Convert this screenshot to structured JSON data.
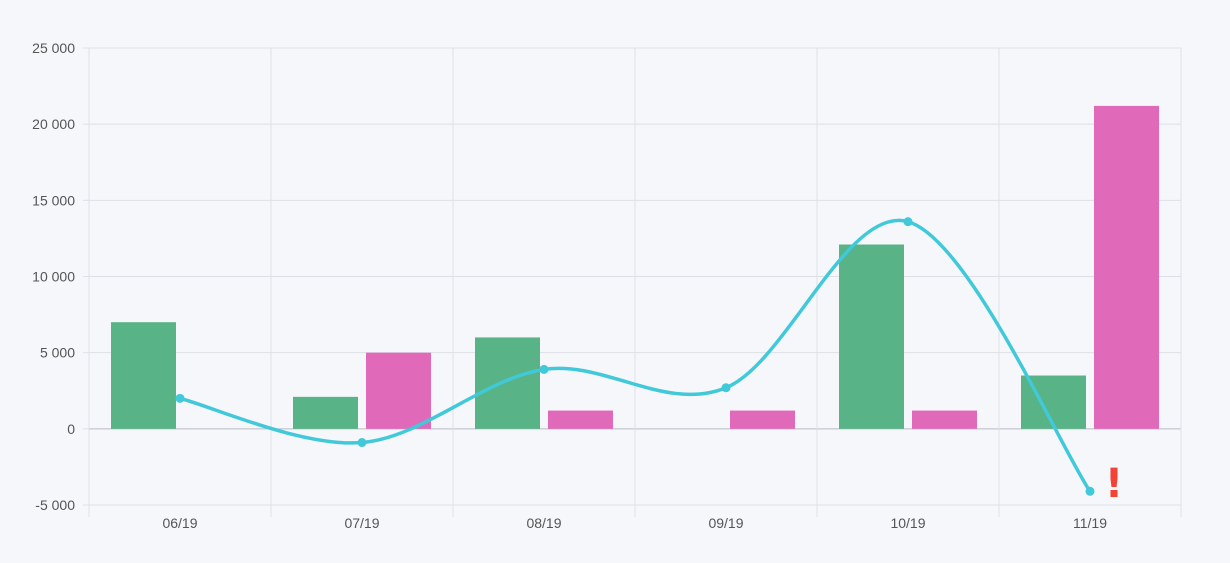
{
  "chart_data": {
    "type": "bar",
    "categories": [
      "06/19",
      "07/19",
      "08/19",
      "09/19",
      "10/19",
      "11/19"
    ],
    "ylim": [
      -5000,
      25000
    ],
    "y_ticks": [
      {
        "value": -5000,
        "label": "-5 000"
      },
      {
        "value": 0,
        "label": "0"
      },
      {
        "value": 5000,
        "label": "5 000"
      },
      {
        "value": 10000,
        "label": "10 000"
      },
      {
        "value": 15000,
        "label": "15 000"
      },
      {
        "value": 20000,
        "label": "20 000"
      },
      {
        "value": 25000,
        "label": "25 000"
      }
    ],
    "grid": true,
    "series": [
      {
        "type": "bar",
        "color": "#58b386",
        "values": [
          7000,
          2100,
          6000,
          0,
          12100,
          3500
        ]
      },
      {
        "type": "bar",
        "color": "#e06ab9",
        "values": [
          0,
          5000,
          1200,
          1200,
          1200,
          21200
        ]
      },
      {
        "type": "line",
        "color": "#41c9da",
        "values": [
          2000,
          -900,
          3900,
          2700,
          13600,
          -4100
        ]
      }
    ],
    "annotation": {
      "text": "!",
      "category": "11/19",
      "color": "#f44336"
    }
  }
}
